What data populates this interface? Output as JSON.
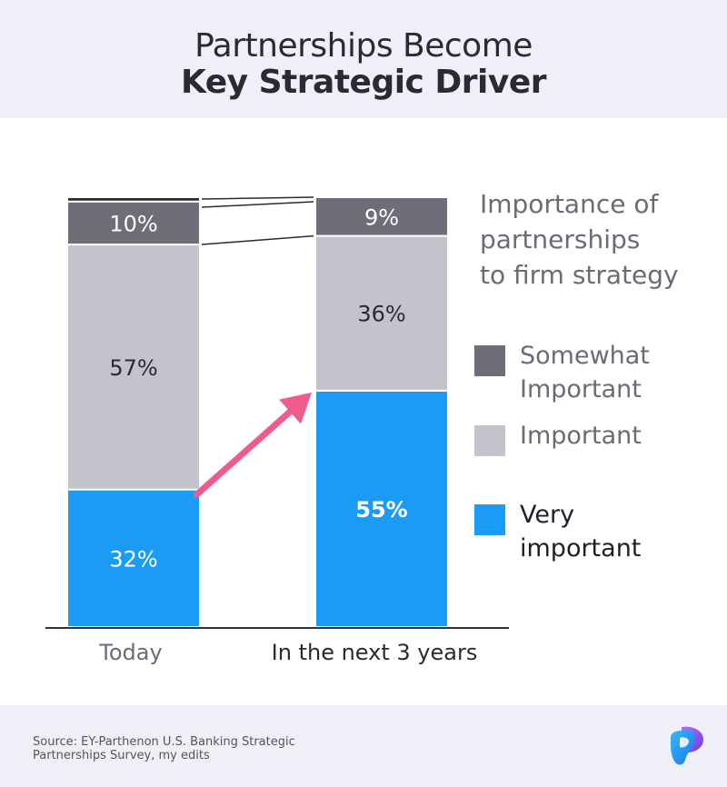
{
  "title": {
    "line1": "Partnerships Become",
    "line2": "Key Strategic Driver"
  },
  "chart_data": {
    "type": "bar",
    "stacked": true,
    "categories": [
      "Today",
      "In the next 3 years"
    ],
    "series": [
      {
        "name": "Very important",
        "values": [
          32,
          55
        ],
        "labels": [
          "32%",
          "55%"
        ],
        "color": "#1a9bf5"
      },
      {
        "name": "Important",
        "values": [
          57,
          36
        ],
        "labels": [
          "57%",
          "36%"
        ],
        "color": "#c3c3cb"
      },
      {
        "name": "Somewhat Important",
        "values": [
          10,
          9
        ],
        "labels": [
          "10%",
          "9%"
        ],
        "color": "#6e6e78"
      },
      {
        "name": "",
        "values": [
          1,
          0
        ],
        "labels": [
          "",
          ""
        ],
        "color": "#2a2a33"
      }
    ],
    "ylim": [
      0,
      100
    ],
    "legend_title": "Importance of partnerships to firm strategy",
    "legend_title_lines": [
      "Importance of",
      "partnerships",
      "to firm strategy"
    ],
    "legend_position": "right",
    "legend": [
      {
        "lines": [
          "Somewhat",
          "Important"
        ],
        "color": "#6e6e78",
        "text_color": "#6b6b78"
      },
      {
        "lines": [
          "Important"
        ],
        "color": "#c3c3cb",
        "text_color": "#6b6b78"
      },
      {
        "lines": [
          "Very",
          "important"
        ],
        "color": "#1a9bf5",
        "text_color": "#1f1f28"
      }
    ],
    "annotation": "arrow from top of Today's Very important segment to top of next-3-years Very important segment",
    "grid": false
  },
  "footer": {
    "source_line1": "Source: EY-Parthenon U.S. Banking Strategic",
    "source_line2": "Partnerships Survey, my edits"
  },
  "colors": {
    "header_bg": "#efeff8",
    "arrow": "#ef5b8e",
    "axis": "#333333"
  }
}
